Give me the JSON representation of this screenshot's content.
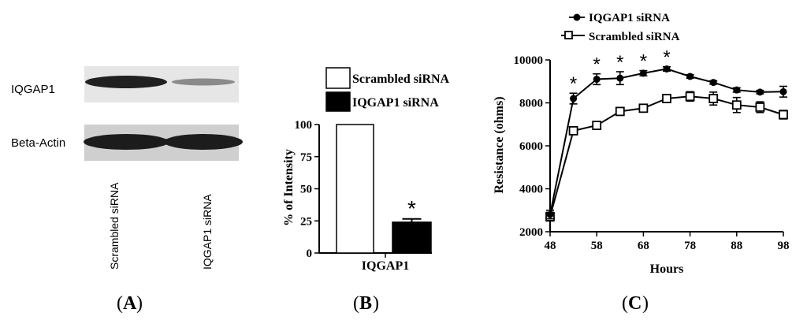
{
  "panel_labels": {
    "a": {
      "open": "(",
      "letter": "A",
      "close": ")"
    },
    "b": {
      "open": "(",
      "letter": "B",
      "close": ")"
    },
    "c": {
      "open": "(",
      "letter": "C",
      "close": ")"
    }
  },
  "blot": {
    "bands": [
      "IQGAP1",
      "Beta-Actin"
    ],
    "lanes": [
      "Scrambled siRNA",
      "IQGAP1 siRNA"
    ]
  },
  "chart_data": [
    {
      "type": "bar",
      "title": "",
      "xlabel": "IQGAP1",
      "ylabel": "% of Intensity",
      "ylim": [
        0,
        100
      ],
      "yticks": [
        "0",
        "25",
        "50",
        "75",
        "100"
      ],
      "legend_position": "top",
      "series": [
        {
          "name": "Scrambled siRNA",
          "values": [
            100
          ],
          "error": [
            0
          ],
          "fill": "#ffffff"
        },
        {
          "name": "IQGAP1 siRNA",
          "values": [
            24
          ],
          "error": [
            2.5
          ],
          "fill": "#000000",
          "annotation": "*"
        }
      ]
    },
    {
      "type": "line",
      "title": "",
      "xlabel": "Hours",
      "ylabel": "Resistance (ohms)",
      "xlim": [
        48,
        98
      ],
      "ylim": [
        2000,
        10000
      ],
      "xticks": [
        "48",
        "58",
        "68",
        "78",
        "88",
        "98"
      ],
      "yticks": [
        "2000",
        "4000",
        "6000",
        "8000",
        "10000"
      ],
      "legend_position": "top-left",
      "x": [
        48,
        53,
        58,
        63,
        68,
        73,
        78,
        83,
        88,
        93,
        98
      ],
      "series": [
        {
          "name": "IQGAP1 siRNA",
          "marker": "filled-circle",
          "values": [
            2800,
            8200,
            9100,
            9150,
            9380,
            9580,
            9230,
            8950,
            8600,
            8500,
            8520
          ],
          "error": [
            200,
            250,
            250,
            300,
            120,
            100,
            80,
            80,
            100,
            80,
            250
          ]
        },
        {
          "name": "Scrambled siRNA",
          "marker": "open-square",
          "values": [
            2700,
            6700,
            6950,
            7600,
            7750,
            8200,
            8300,
            8200,
            7900,
            7800,
            7450
          ],
          "error": [
            200,
            150,
            120,
            150,
            100,
            100,
            220,
            300,
            350,
            250,
            200
          ]
        }
      ],
      "significance": {
        "symbol": "*",
        "x": [
          53,
          58,
          63,
          68,
          73
        ]
      }
    }
  ]
}
